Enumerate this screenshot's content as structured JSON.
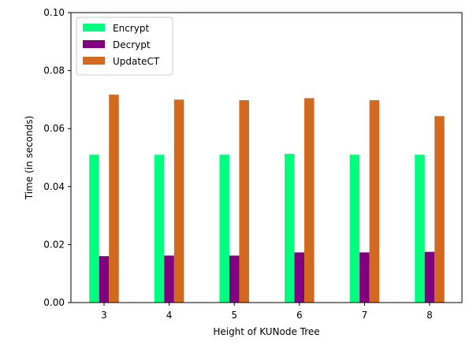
{
  "chart_data": {
    "type": "bar",
    "title": "",
    "xlabel": "Height of KUNode Tree",
    "ylabel": "Time (in seconds)",
    "categories": [
      "3",
      "4",
      "5",
      "6",
      "7",
      "8"
    ],
    "series": [
      {
        "name": "Encrypt",
        "color": "#00ff7f",
        "values": [
          0.051,
          0.051,
          0.051,
          0.0513,
          0.051,
          0.051
        ]
      },
      {
        "name": "Decrypt",
        "color": "#800080",
        "values": [
          0.016,
          0.0162,
          0.0162,
          0.0173,
          0.0173,
          0.0175
        ]
      },
      {
        "name": "UpdateCT",
        "color": "#d2691e",
        "values": [
          0.0717,
          0.07,
          0.0698,
          0.0705,
          0.0698,
          0.0643
        ]
      }
    ],
    "ylim": [
      0,
      0.1
    ],
    "yticks": [
      "0.00",
      "0.02",
      "0.04",
      "0.06",
      "0.08",
      "0.10"
    ],
    "grid": false,
    "legend_position": "top-left"
  }
}
